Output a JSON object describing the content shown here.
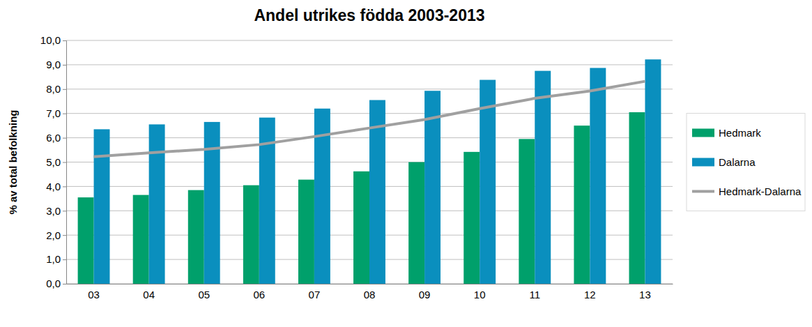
{
  "chart_data": {
    "type": "bar",
    "title": "Andel utrikes födda 2003-2013",
    "y_label": "% av total befolkning",
    "categories": [
      "03",
      "04",
      "05",
      "06",
      "07",
      "08",
      "09",
      "10",
      "11",
      "12",
      "13"
    ],
    "series": [
      {
        "name": "Hedmark",
        "type": "bar",
        "color": "#00a06b",
        "values": [
          3.55,
          3.65,
          3.85,
          4.05,
          4.28,
          4.62,
          5.0,
          5.42,
          5.95,
          6.5,
          7.05
        ]
      },
      {
        "name": "Dalarna",
        "type": "bar",
        "color": "#0a8fbe",
        "values": [
          6.35,
          6.55,
          6.65,
          6.83,
          7.2,
          7.55,
          7.93,
          8.38,
          8.75,
          8.87,
          9.22
        ]
      },
      {
        "name": "Hedmark-Dalarna",
        "type": "line",
        "color": "#a0a0a0",
        "values": [
          5.22,
          5.38,
          5.52,
          5.72,
          6.05,
          6.4,
          6.75,
          7.2,
          7.62,
          7.92,
          8.32
        ]
      }
    ],
    "ylim": [
      0,
      10
    ],
    "yticks": [
      {
        "value": 0,
        "label": "0,0"
      },
      {
        "value": 1,
        "label": "1,0"
      },
      {
        "value": 2,
        "label": "2,0"
      },
      {
        "value": 3,
        "label": "3,0"
      },
      {
        "value": 4,
        "label": "4,0"
      },
      {
        "value": 5,
        "label": "5,0"
      },
      {
        "value": 6,
        "label": "6,0"
      },
      {
        "value": 7,
        "label": "7,0"
      },
      {
        "value": 8,
        "label": "8,0"
      },
      {
        "value": 9,
        "label": "9,0"
      },
      {
        "value": 10,
        "label": "10,0"
      }
    ],
    "grid": true,
    "legend": "right"
  }
}
